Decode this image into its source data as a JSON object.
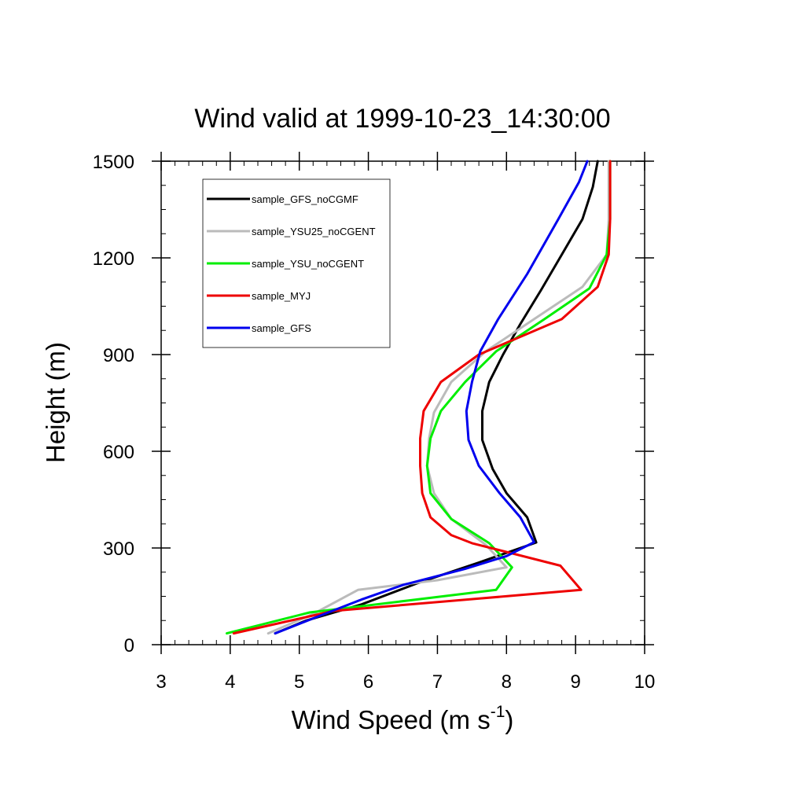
{
  "chart_data": {
    "type": "line",
    "title": "Wind valid at 1999-10-23_14:30:00",
    "xlabel": "Wind Speed (m s",
    "xlabel_superscript": "-1",
    "xlabel_suffix": ")",
    "ylabel": "Height (m)",
    "xlim": [
      3,
      10
    ],
    "ylim": [
      0,
      1500
    ],
    "x_ticks": [
      "3",
      "4",
      "5",
      "6",
      "7",
      "8",
      "9",
      "10"
    ],
    "y_ticks": [
      "0",
      "300",
      "600",
      "900",
      "1200",
      "1500"
    ],
    "grid": false,
    "legend_position": "top-left",
    "series": [
      {
        "name": "sample_GFS_noCGMF",
        "color": "#000000",
        "points": [
          [
            4.65,
            35
          ],
          [
            5.1,
            75
          ],
          [
            5.9,
            125
          ],
          [
            6.7,
            190
          ],
          [
            7.6,
            255
          ],
          [
            8.43,
            317
          ],
          [
            8.3,
            395
          ],
          [
            8.0,
            470
          ],
          [
            7.8,
            545
          ],
          [
            7.65,
            635
          ],
          [
            7.65,
            725
          ],
          [
            7.75,
            815
          ],
          [
            7.95,
            900
          ],
          [
            8.2,
            995
          ],
          [
            8.5,
            1100
          ],
          [
            8.8,
            1210
          ],
          [
            9.1,
            1320
          ],
          [
            9.25,
            1420
          ],
          [
            9.32,
            1500
          ]
        ]
      },
      {
        "name": "sample_YSU25_noCGENT",
        "color": "#bbbbbb",
        "points": [
          [
            4.55,
            35
          ],
          [
            5.2,
            95
          ],
          [
            5.85,
            170
          ],
          [
            7.0,
            200
          ],
          [
            8.0,
            240
          ],
          [
            7.7,
            310
          ],
          [
            7.2,
            390
          ],
          [
            6.95,
            470
          ],
          [
            6.85,
            555
          ],
          [
            6.88,
            640
          ],
          [
            6.95,
            720
          ],
          [
            7.2,
            815
          ],
          [
            7.7,
            910
          ],
          [
            8.4,
            1010
          ],
          [
            9.1,
            1110
          ],
          [
            9.45,
            1210
          ],
          [
            9.48,
            1320
          ],
          [
            9.48,
            1420
          ],
          [
            9.48,
            1500
          ]
        ]
      },
      {
        "name": "sample_YSU_noCGENT",
        "color": "#00ee00",
        "points": [
          [
            3.95,
            35
          ],
          [
            5.15,
            100
          ],
          [
            7.85,
            170
          ],
          [
            8.08,
            240
          ],
          [
            7.75,
            315
          ],
          [
            7.2,
            390
          ],
          [
            6.9,
            470
          ],
          [
            6.85,
            555
          ],
          [
            6.9,
            640
          ],
          [
            7.05,
            725
          ],
          [
            7.4,
            815
          ],
          [
            7.85,
            910
          ],
          [
            8.55,
            1010
          ],
          [
            9.2,
            1105
          ],
          [
            9.45,
            1210
          ],
          [
            9.5,
            1320
          ],
          [
            9.5,
            1420
          ],
          [
            9.5,
            1500
          ]
        ]
      },
      {
        "name": "sample_MYJ",
        "color": "#ee0000",
        "points": [
          [
            4.05,
            35
          ],
          [
            5.5,
            105
          ],
          [
            9.08,
            170
          ],
          [
            8.78,
            245
          ],
          [
            7.5,
            315
          ],
          [
            7.2,
            340
          ],
          [
            6.9,
            395
          ],
          [
            6.78,
            470
          ],
          [
            6.75,
            555
          ],
          [
            6.75,
            640
          ],
          [
            6.8,
            725
          ],
          [
            7.05,
            815
          ],
          [
            7.6,
            900
          ],
          [
            8.8,
            1010
          ],
          [
            9.32,
            1110
          ],
          [
            9.48,
            1210
          ],
          [
            9.5,
            1320
          ],
          [
            9.5,
            1420
          ],
          [
            9.5,
            1500
          ]
        ]
      },
      {
        "name": "sample_GFS",
        "color": "#0000ee",
        "points": [
          [
            4.65,
            35
          ],
          [
            5.3,
            90
          ],
          [
            5.9,
            140
          ],
          [
            6.5,
            185
          ],
          [
            7.4,
            235
          ],
          [
            8.0,
            275
          ],
          [
            8.4,
            318
          ],
          [
            8.2,
            395
          ],
          [
            7.9,
            470
          ],
          [
            7.6,
            555
          ],
          [
            7.45,
            635
          ],
          [
            7.42,
            725
          ],
          [
            7.5,
            815
          ],
          [
            7.62,
            910
          ],
          [
            7.88,
            1010
          ],
          [
            8.3,
            1150
          ],
          [
            8.75,
            1320
          ],
          [
            9.05,
            1435
          ],
          [
            9.17,
            1500
          ]
        ]
      }
    ]
  }
}
